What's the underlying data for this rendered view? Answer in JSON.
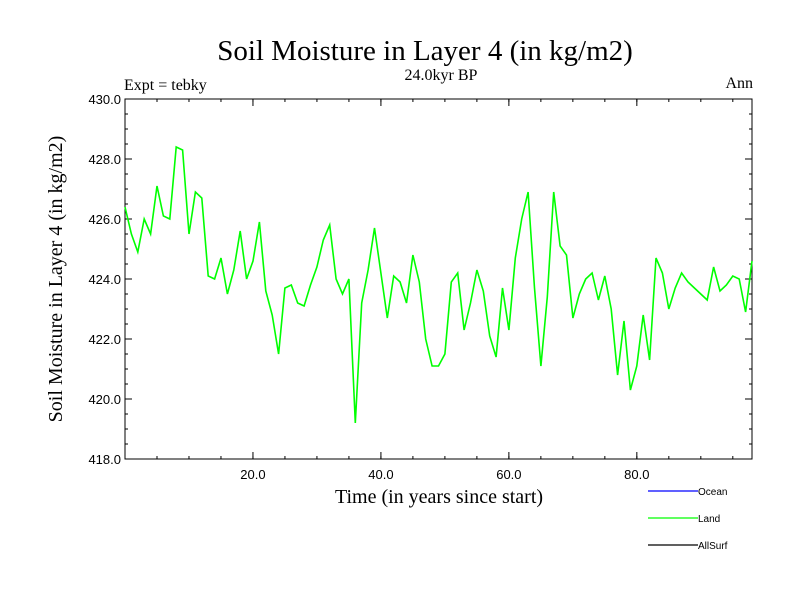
{
  "chart_data": {
    "type": "line",
    "title": "Soil Moisture in Layer 4 (in kg/m2)",
    "subtitle": "24.0kyr BP",
    "left_note": "Expt = tebky",
    "right_note": "Ann",
    "xlabel": "Time (in years since start)",
    "ylabel": "Soil Moisture in Layer 4 (in kg/m2)",
    "xlim": [
      0,
      98
    ],
    "ylim": [
      418.0,
      430.0
    ],
    "x_ticks": [
      20.0,
      40.0,
      60.0,
      80.0
    ],
    "x_tick_labels": [
      "20.0",
      "40.0",
      "60.0",
      "80.0"
    ],
    "y_ticks": [
      418.0,
      420.0,
      422.0,
      424.0,
      426.0,
      428.0,
      430.0
    ],
    "y_tick_labels": [
      "418.0",
      "420.0",
      "422.0",
      "424.0",
      "426.0",
      "428.0",
      "430.0"
    ],
    "legend": [
      {
        "name": "Ocean",
        "color": "#0000ff"
      },
      {
        "name": "Land",
        "color": "#00ff00"
      },
      {
        "name": "AllSurf",
        "color": "#000000"
      }
    ],
    "series": [
      {
        "name": "Land",
        "color": "#00ff00",
        "x": [
          0,
          1,
          2,
          3,
          4,
          5,
          6,
          7,
          8,
          9,
          10,
          11,
          12,
          13,
          14,
          15,
          16,
          17,
          18,
          19,
          20,
          21,
          22,
          23,
          24,
          25,
          26,
          27,
          28,
          29,
          30,
          31,
          32,
          33,
          34,
          35,
          36,
          37,
          38,
          39,
          40,
          41,
          42,
          43,
          44,
          45,
          46,
          47,
          48,
          49,
          50,
          51,
          52,
          53,
          54,
          55,
          56,
          57,
          58,
          59,
          60,
          61,
          62,
          63,
          64,
          65,
          66,
          67,
          68,
          69,
          70,
          71,
          72,
          73,
          74,
          75,
          76,
          77,
          78,
          79,
          80,
          81,
          82,
          83,
          84,
          85,
          86,
          87,
          88,
          89,
          90,
          91,
          92,
          93,
          94,
          95,
          96,
          97,
          98
        ],
        "values": [
          426.4,
          425.5,
          424.9,
          426.0,
          425.5,
          427.1,
          426.1,
          426.0,
          428.4,
          428.3,
          425.5,
          426.9,
          426.7,
          424.1,
          424.0,
          424.7,
          423.5,
          424.3,
          425.6,
          424.0,
          424.6,
          425.9,
          423.6,
          422.8,
          421.5,
          423.7,
          423.8,
          423.2,
          423.1,
          423.8,
          424.4,
          425.3,
          425.8,
          424.0,
          423.5,
          424.0,
          419.2,
          423.2,
          424.3,
          425.7,
          424.2,
          422.7,
          424.1,
          423.9,
          423.2,
          424.8,
          423.9,
          422.0,
          421.1,
          421.1,
          421.5,
          423.9,
          424.2,
          422.3,
          423.2,
          424.3,
          423.6,
          422.1,
          421.4,
          423.7,
          422.3,
          424.7,
          426.0,
          426.9,
          423.7,
          421.1,
          423.4,
          426.9,
          425.1,
          424.8,
          422.7,
          423.5,
          424.0,
          424.2,
          423.3,
          424.1,
          423.0,
          420.8,
          422.6,
          420.3,
          421.1,
          422.8,
          421.3,
          424.7,
          424.2,
          423.0,
          423.7,
          424.2,
          423.9,
          423.7,
          423.5,
          423.3,
          424.4,
          423.6,
          423.8,
          424.1,
          424.0,
          422.9,
          424.6
        ]
      }
    ]
  }
}
